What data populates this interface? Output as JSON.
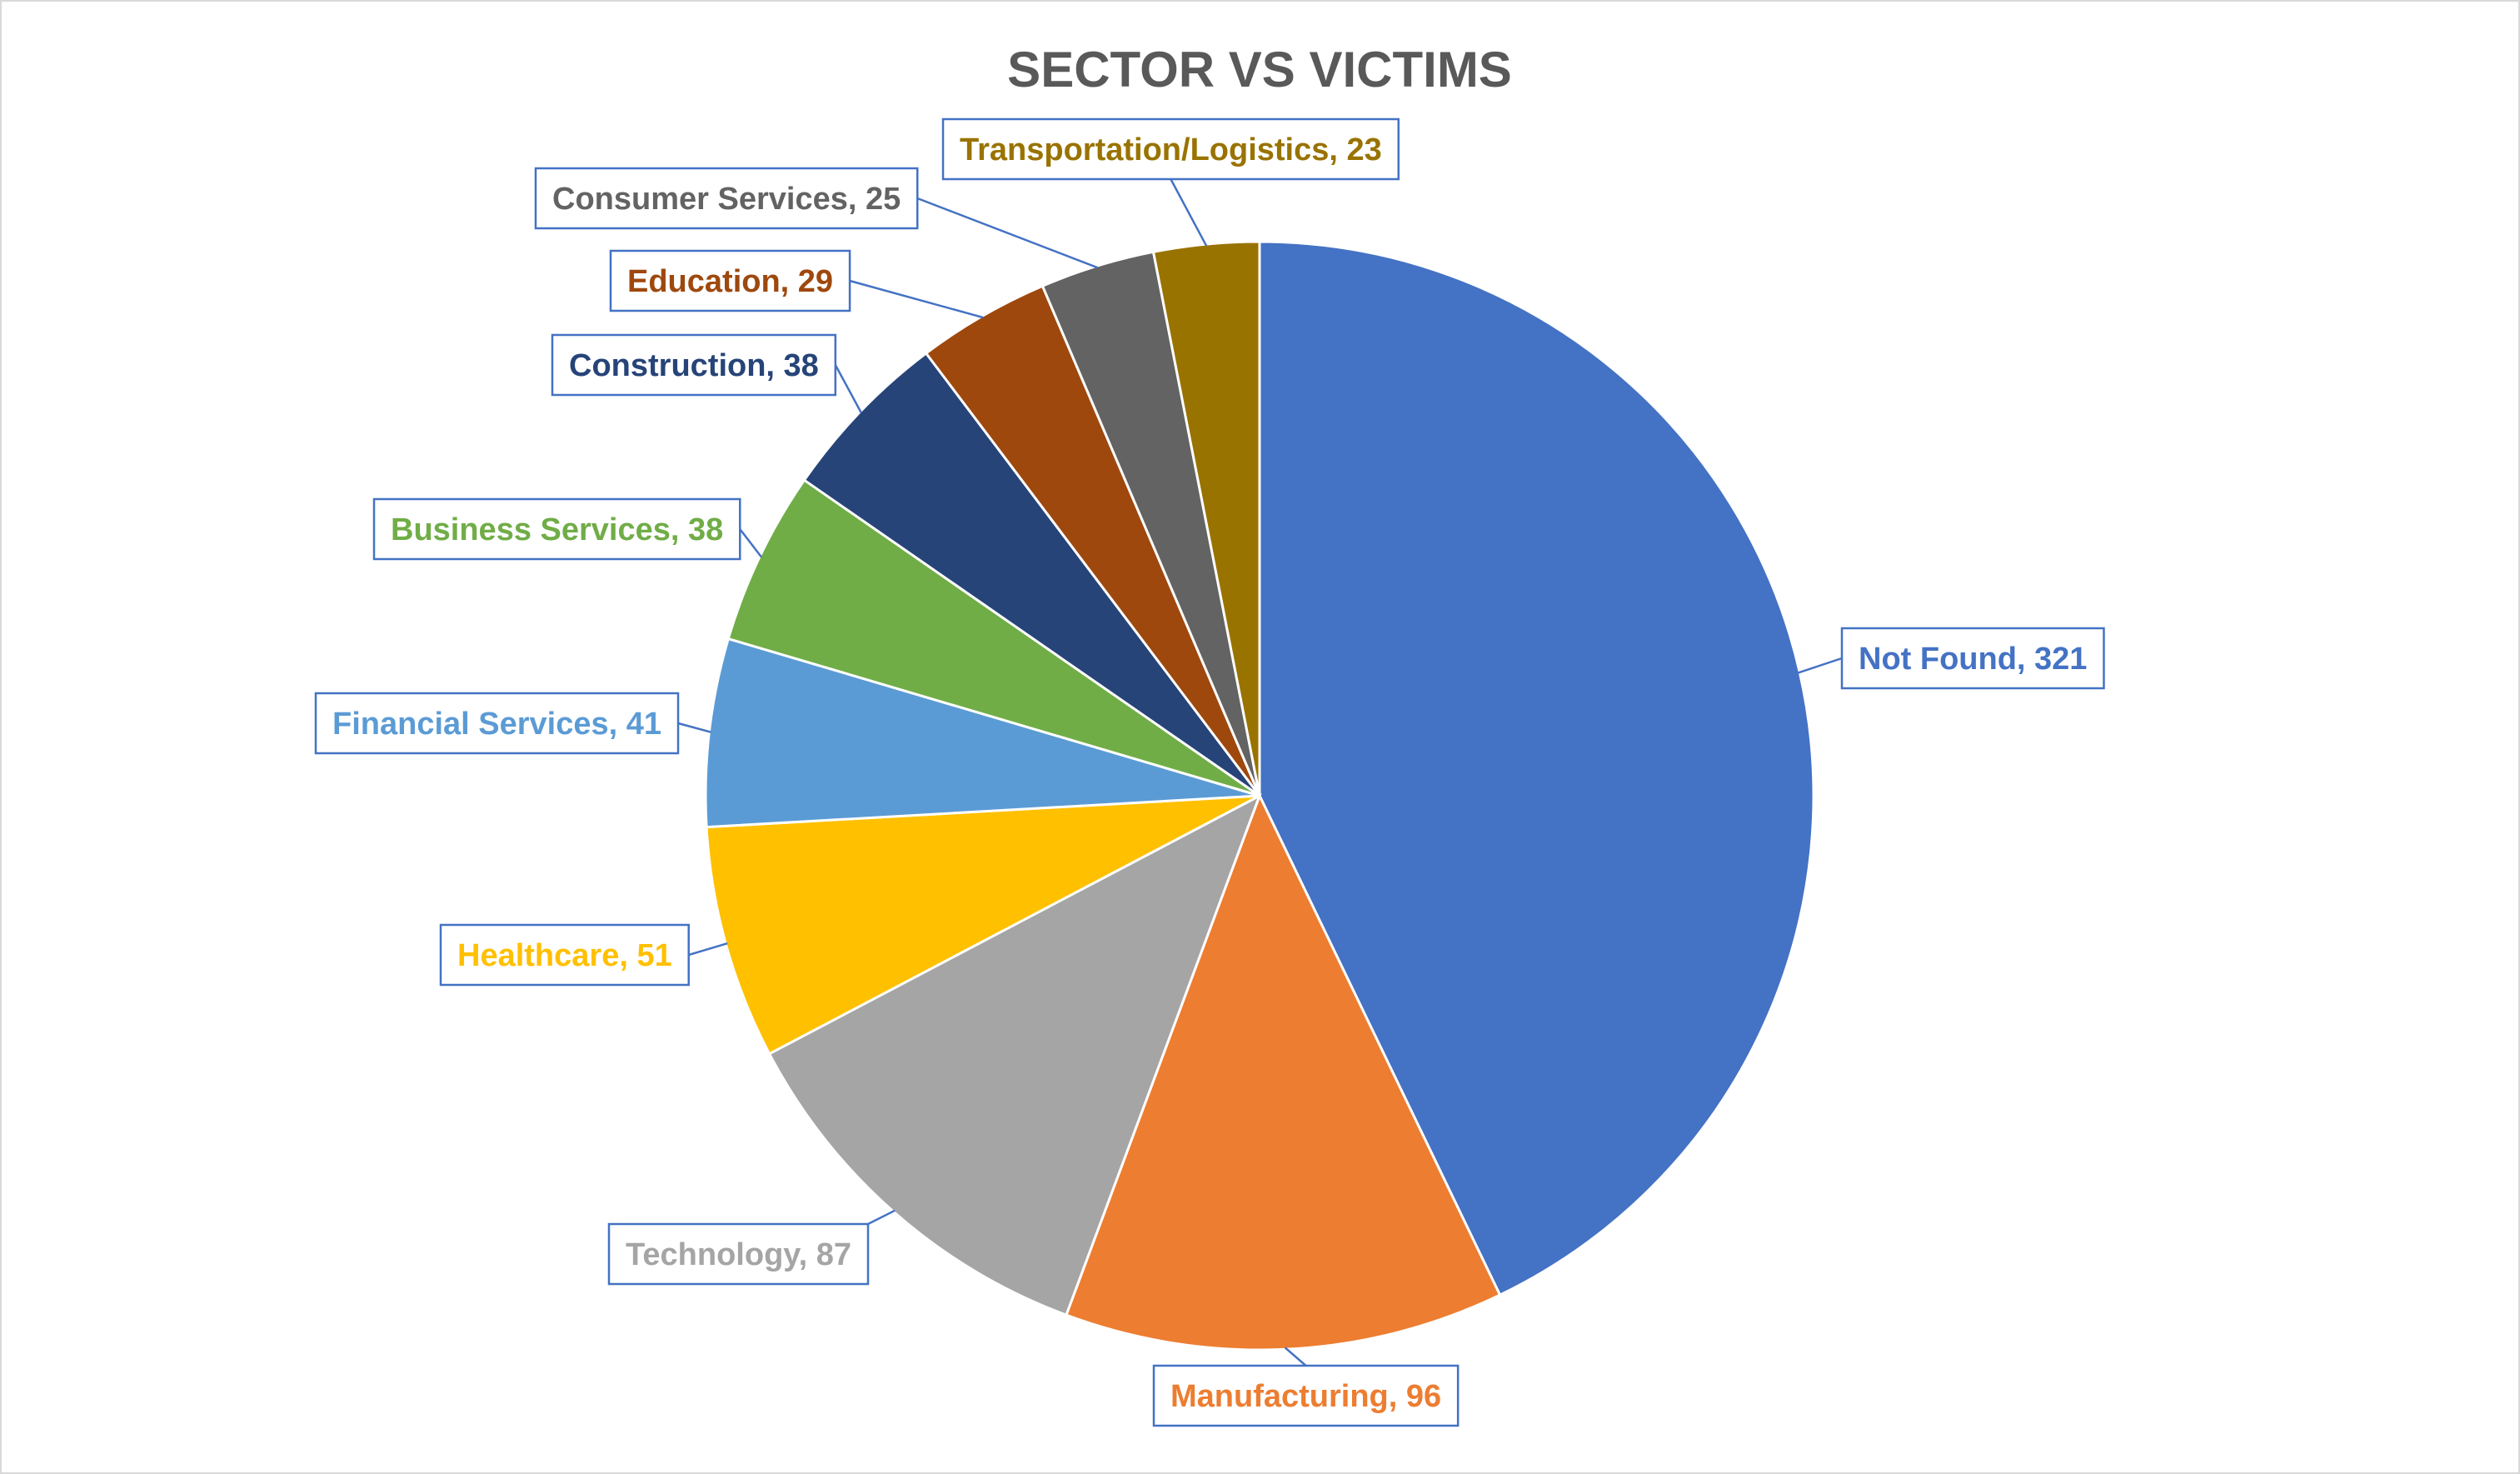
{
  "chart_data": {
    "type": "pie",
    "title": "SECTOR VS VICTIMS",
    "slices": [
      {
        "label": "Not Found",
        "value": 321,
        "display": "Not Found, 321",
        "color": "#4472c4",
        "text_color": "#4472c4"
      },
      {
        "label": "Manufacturing",
        "value": 96,
        "display": "Manufacturing, 96",
        "color": "#ed7d31",
        "text_color": "#ed7d31"
      },
      {
        "label": "Technology",
        "value": 87,
        "display": "Technology, 87",
        "color": "#a5a5a5",
        "text_color": "#a5a5a5"
      },
      {
        "label": "Healthcare",
        "value": 51,
        "display": "Healthcare, 51",
        "color": "#ffc000",
        "text_color": "#ffc000"
      },
      {
        "label": "Financial Services",
        "value": 41,
        "display": "Financial Services, 41",
        "color": "#5b9bd5",
        "text_color": "#5b9bd5"
      },
      {
        "label": "Business Services",
        "value": 38,
        "display": "Business Services, 38",
        "color": "#70ad47",
        "text_color": "#70ad47"
      },
      {
        "label": "Construction",
        "value": 38,
        "display": "Construction, 38",
        "color": "#264478",
        "text_color": "#264478"
      },
      {
        "label": "Education",
        "value": 29,
        "display": "Education, 29",
        "color": "#9e480e",
        "text_color": "#9e480e"
      },
      {
        "label": "Consumer Services",
        "value": 25,
        "display": "Consumer Services, 25",
        "color": "#636363",
        "text_color": "#636363"
      },
      {
        "label": "Transportation/Logistics",
        "value": 23,
        "display": "Transportation/Logistics, 23",
        "color": "#997300",
        "text_color": "#997300"
      }
    ],
    "start": "12 o'clock",
    "direction": "clockwise",
    "labels": "outside-callouts"
  }
}
